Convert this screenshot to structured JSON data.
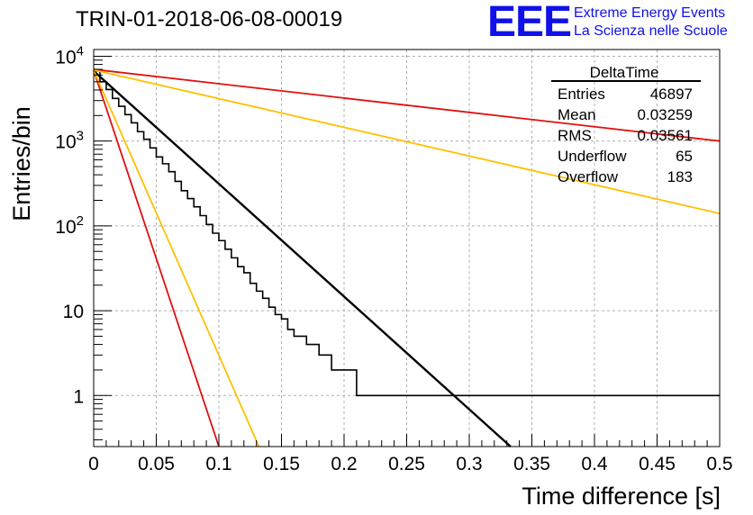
{
  "header": {
    "title": "TRIN-01-2018-06-08-00019",
    "logo_text": "EEE",
    "logo_line1": "Extreme Energy Events",
    "logo_line2": "La Scienza nelle Scuole",
    "logo_color": "#1010e8"
  },
  "stats_box": {
    "name": "DeltaTime",
    "rows": [
      {
        "label": "Entries",
        "value": "46897"
      },
      {
        "label": "Mean",
        "value": "0.03259"
      },
      {
        "label": "RMS",
        "value": "0.03561"
      },
      {
        "label": "Underflow",
        "value": "65"
      },
      {
        "label": "Overflow",
        "value": "183"
      }
    ]
  },
  "chart_data": {
    "type": "line",
    "title": "TRIN-01-2018-06-08-00019",
    "xlabel": "Time difference [s]",
    "ylabel": "Entries/bin",
    "xlim": [
      0,
      0.5
    ],
    "ylim": [
      0.25,
      12000
    ],
    "yscale": "log",
    "grid": true,
    "x_ticks": [
      0,
      0.05,
      0.1,
      0.15,
      0.2,
      0.25,
      0.3,
      0.35,
      0.4,
      0.45,
      0.5
    ],
    "x_tick_labels": [
      "0",
      "0.05",
      "0.1",
      "0.15",
      "0.2",
      "0.25",
      "0.3",
      "0.35",
      "0.4",
      "0.45",
      "0.5"
    ],
    "y_ticks": [
      1,
      10,
      100,
      1000,
      10000
    ],
    "y_tick_labels": [
      {
        "base": "1",
        "exp": ""
      },
      {
        "base": "10",
        "exp": ""
      },
      {
        "base": "10",
        "exp": "2"
      },
      {
        "base": "10",
        "exp": "3"
      },
      {
        "base": "10",
        "exp": "4"
      }
    ],
    "histogram": {
      "name": "DeltaTime",
      "bin_width": 0.005,
      "color": "#000000",
      "values": [
        6700,
        5000,
        4050,
        3180,
        2570,
        2050,
        1640,
        1290,
        1050,
        830,
        650,
        540,
        435,
        335,
        260,
        210,
        168,
        132,
        104,
        82,
        67,
        53,
        42,
        33,
        28,
        21,
        17,
        14,
        11,
        9,
        8,
        6,
        5,
        5,
        4,
        4,
        3,
        3,
        2,
        2,
        2,
        2,
        1,
        1,
        1,
        1,
        1,
        1,
        1,
        1,
        1,
        1,
        1,
        1,
        1,
        1,
        1,
        1,
        1,
        1,
        1,
        1,
        1,
        1,
        1,
        1,
        1,
        1,
        1,
        1,
        1,
        1,
        1,
        1,
        1,
        1,
        1,
        1,
        1,
        1,
        1,
        1,
        1,
        1,
        1,
        1,
        1,
        1,
        1,
        1,
        1,
        1,
        1,
        1,
        1,
        1,
        1,
        1,
        1,
        1
      ]
    },
    "fits": [
      {
        "color": "#000000",
        "x": [
          0,
          0.333
        ],
        "y": [
          6700,
          0.25
        ]
      },
      {
        "color": "#e01010",
        "x": [
          0,
          0.1
        ],
        "y": [
          6800,
          0.25
        ]
      },
      {
        "color": "#ffc000",
        "x": [
          0,
          0.132
        ],
        "y": [
          6800,
          0.25
        ]
      },
      {
        "color": "#e01010",
        "x": [
          0,
          0.5
        ],
        "y": [
          7000,
          1000
        ]
      },
      {
        "color": "#ffc000",
        "x": [
          0,
          0.5
        ],
        "y": [
          6900,
          140
        ]
      }
    ]
  }
}
